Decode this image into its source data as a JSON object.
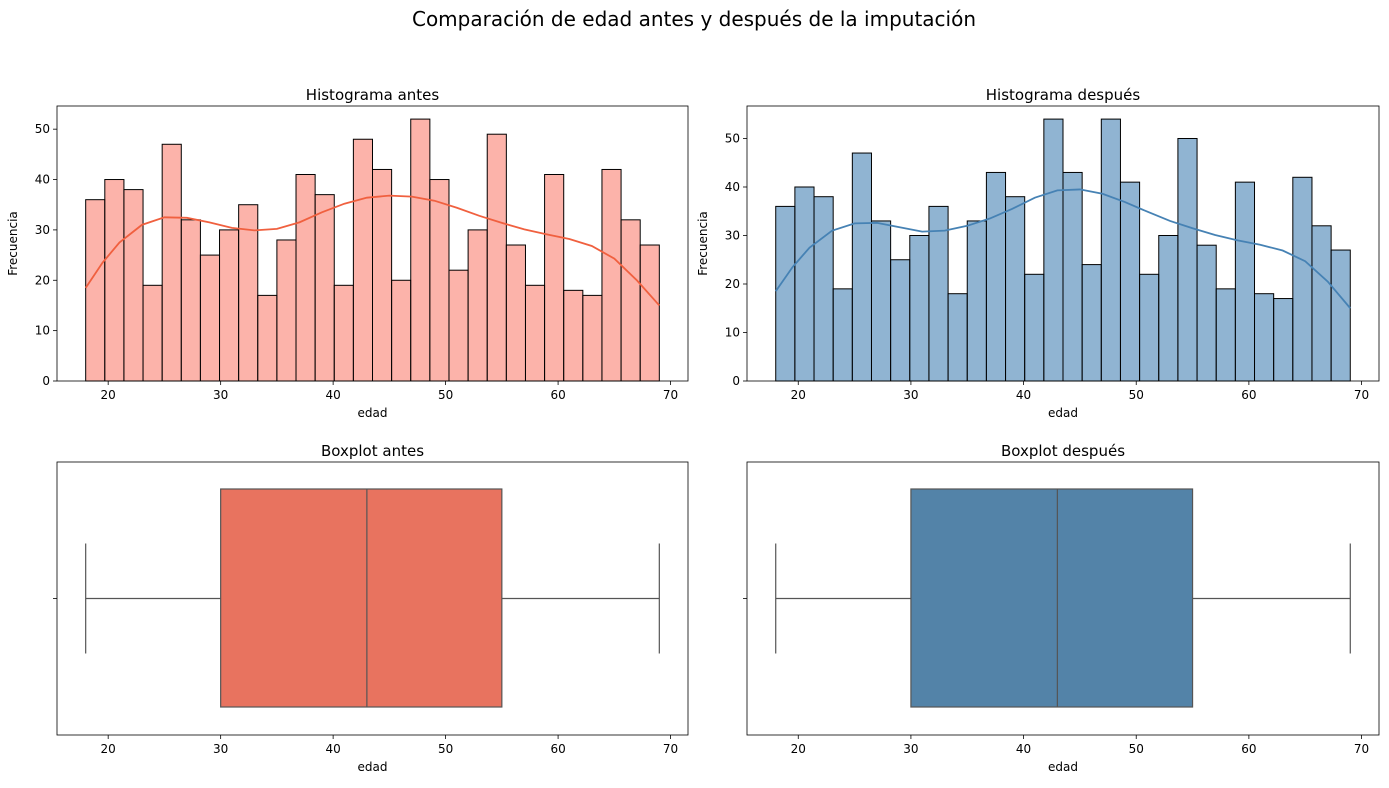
{
  "figure": {
    "title": "Comparación de edad antes y después de la imputación"
  },
  "chart_data": [
    {
      "id": "hist-antes",
      "type": "bar",
      "title": "Histograma antes",
      "xlabel": "edad",
      "ylabel": "Frecuencia",
      "xlim": [
        15.45,
        71.55
      ],
      "ylim": [
        0,
        54.6
      ],
      "xticks": [
        20,
        30,
        40,
        50,
        60,
        70
      ],
      "yticks": [
        0,
        10,
        20,
        30,
        40,
        50
      ],
      "bin_start": 18,
      "bin_width": 1.7,
      "values": [
        36,
        40,
        38,
        19,
        47,
        32,
        25,
        30,
        35,
        17,
        28,
        41,
        37,
        19,
        48,
        42,
        20,
        52,
        40,
        22,
        30,
        49,
        27,
        19,
        41,
        18,
        17,
        42,
        32,
        27
      ],
      "kde": {
        "x": [
          18,
          19.5,
          21,
          23,
          25,
          27,
          29,
          31,
          33,
          35,
          37,
          39,
          41,
          43,
          45,
          47,
          49,
          51,
          53,
          55,
          57,
          59,
          61,
          63,
          65,
          67,
          69
        ],
        "y": [
          18.5,
          23.5,
          27.5,
          31,
          32.5,
          32.4,
          31.5,
          30.4,
          29.9,
          30.2,
          31.5,
          33.5,
          35.2,
          36.4,
          36.8,
          36.6,
          35.8,
          34.4,
          32.8,
          31.4,
          30.1,
          29.1,
          28.2,
          26.8,
          24.3,
          20,
          15
        ]
      },
      "color": "#fa8072",
      "kde_color": "#f0603f"
    },
    {
      "id": "hist-despues",
      "type": "bar",
      "title": "Histograma después",
      "xlabel": "edad",
      "ylabel": "Frecuencia",
      "xlim": [
        15.45,
        71.55
      ],
      "ylim": [
        0,
        56.7
      ],
      "xticks": [
        20,
        30,
        40,
        50,
        60,
        70
      ],
      "yticks": [
        0,
        10,
        20,
        30,
        40,
        50
      ],
      "bin_start": 18,
      "bin_width": 1.7,
      "values": [
        36,
        40,
        38,
        19,
        47,
        33,
        25,
        30,
        36,
        18,
        33,
        43,
        38,
        22,
        54,
        43,
        24,
        54,
        41,
        22,
        30,
        50,
        28,
        19,
        41,
        18,
        17,
        42,
        32,
        27
      ],
      "kde": {
        "x": [
          18,
          19.5,
          21,
          23,
          25,
          27,
          29,
          31,
          33,
          35,
          37,
          39,
          41,
          43,
          45,
          47,
          49,
          51,
          53,
          55,
          57,
          59,
          61,
          63,
          65,
          67,
          69
        ],
        "y": [
          18.5,
          23.5,
          27.5,
          31,
          32.5,
          32.6,
          31.7,
          30.8,
          31,
          32,
          33.5,
          35.5,
          37.8,
          39.3,
          39.5,
          38.6,
          36.9,
          34.9,
          33,
          31.5,
          30.1,
          29,
          28.1,
          26.9,
          24.7,
          20.5,
          15
        ]
      },
      "color": "#4682b4",
      "kde_color": "#4682b4"
    },
    {
      "id": "box-antes",
      "type": "box",
      "title": "Boxplot antes",
      "xlabel": "edad",
      "xlim": [
        15.45,
        71.55
      ],
      "xticks": [
        20,
        30,
        40,
        50,
        60,
        70
      ],
      "stats": {
        "min": 18,
        "q1": 30,
        "median": 43,
        "q3": 55,
        "max": 69
      },
      "color": "#e8735f"
    },
    {
      "id": "box-despues",
      "type": "box",
      "title": "Boxplot después",
      "xlabel": "edad",
      "xlim": [
        15.45,
        71.55
      ],
      "xticks": [
        20,
        30,
        40,
        50,
        60,
        70
      ],
      "stats": {
        "min": 18,
        "q1": 30,
        "median": 43,
        "q3": 55,
        "max": 69
      },
      "color": "#5383a8"
    }
  ]
}
